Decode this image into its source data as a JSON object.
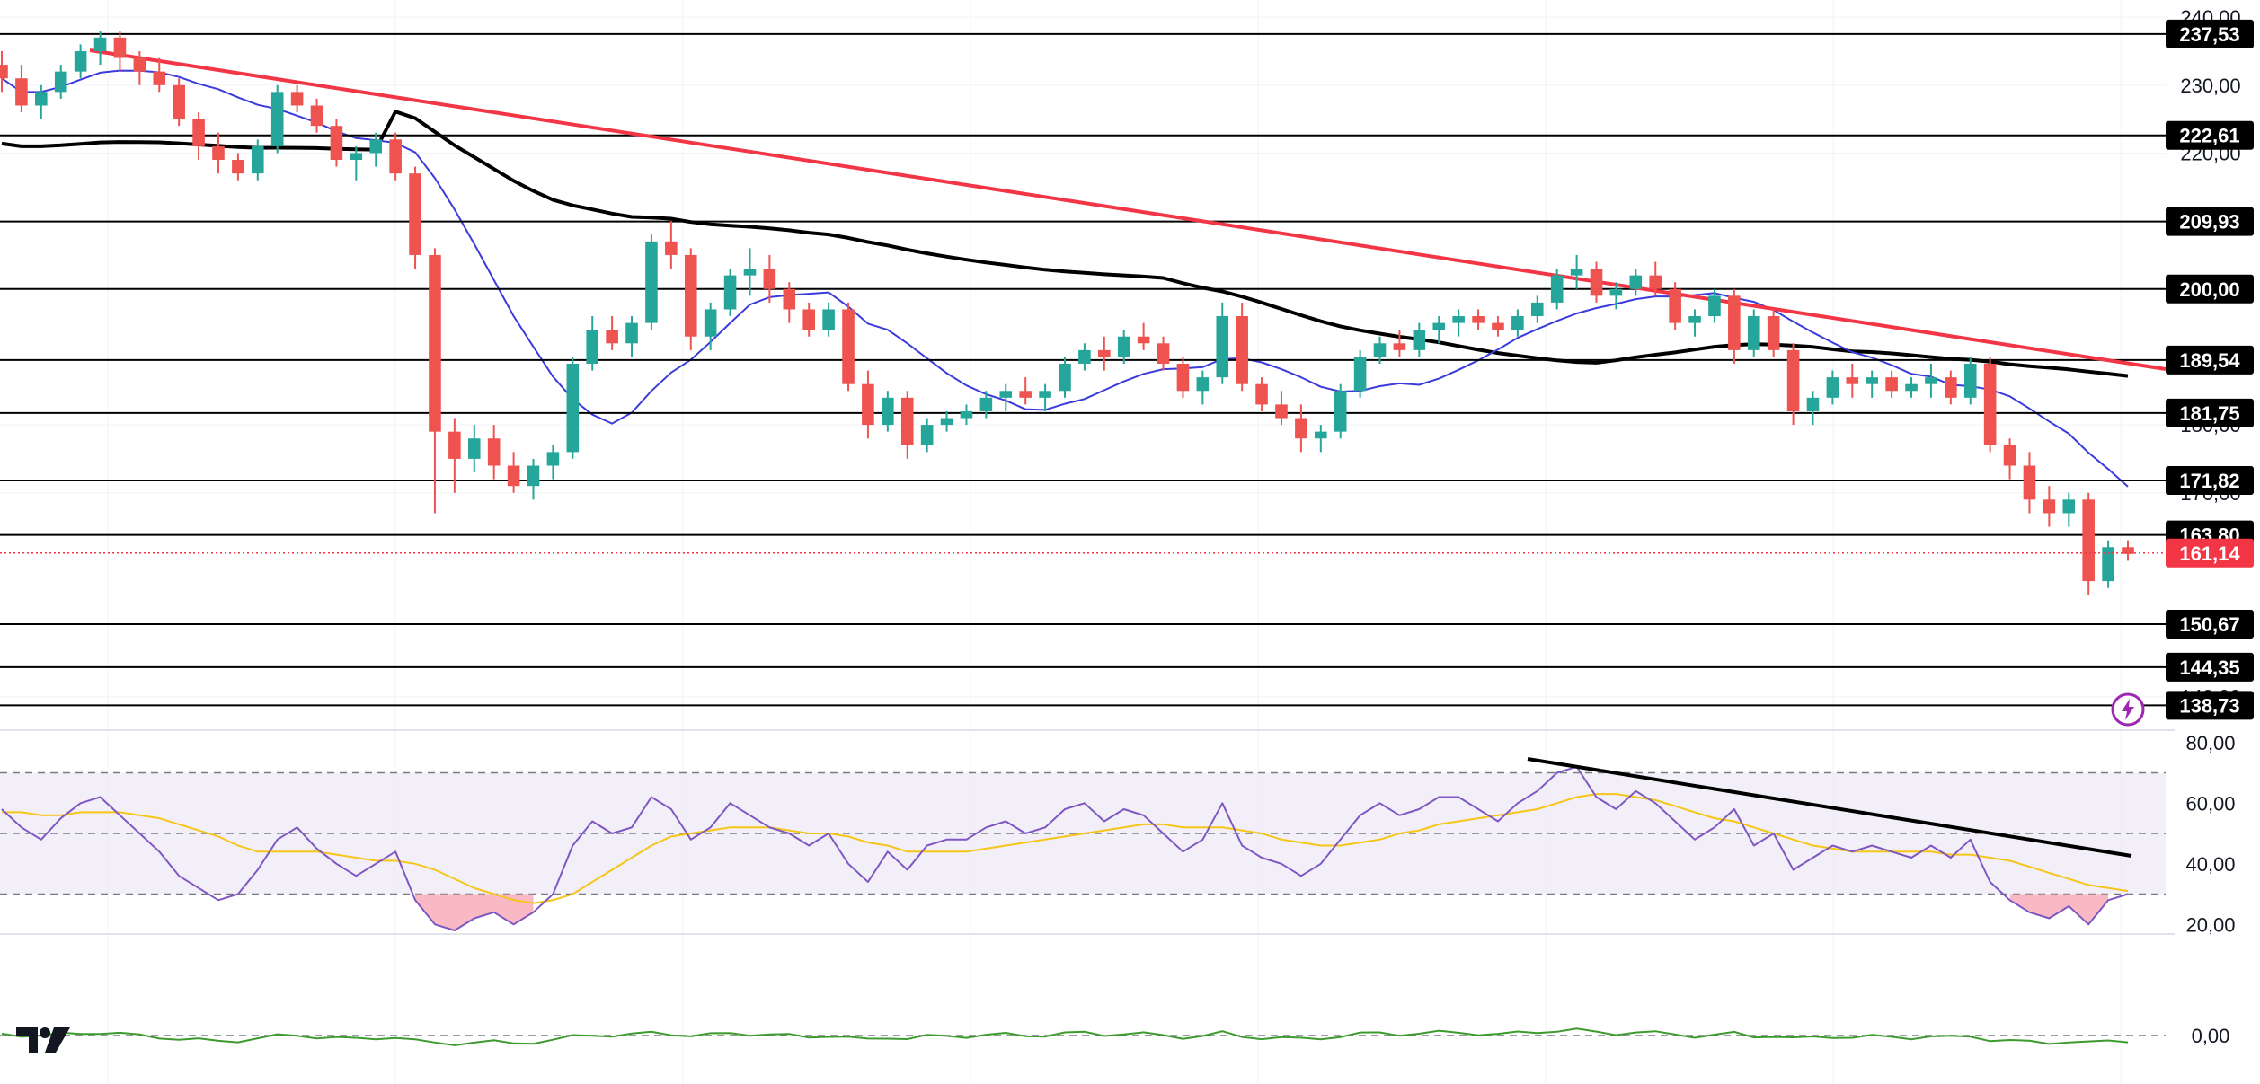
{
  "colors": {
    "up": "#26a69a",
    "down": "#ef5350",
    "sma_short": "#3b3bdc",
    "sma_long": "#000000",
    "trendline": "#f23645",
    "rsi": "#7e57c2",
    "rsi_ma": "#f5c518",
    "osc": "#3d9b2e",
    "current_price": "#f23645"
  },
  "chart_data": [
    {
      "type": "candlestick",
      "panel": "price",
      "y_scale": "linear",
      "ylim": [
        136,
        242
      ],
      "y_ticks": [
        "240,00",
        "230,00",
        "220,00",
        "180,00",
        "170,00",
        "140,00"
      ],
      "levels": [
        "237,53",
        "222,61",
        "209,93",
        "200,00",
        "189,54",
        "181,75",
        "171,82",
        "163,80",
        "150,67",
        "144,35",
        "138,73"
      ],
      "current_price": {
        "label": "161,14",
        "value": 161.14
      },
      "ohlc": [
        [
          233,
          235,
          229,
          231
        ],
        [
          231,
          233,
          226,
          227
        ],
        [
          227,
          230,
          225,
          229
        ],
        [
          229,
          233,
          228,
          232
        ],
        [
          232,
          236,
          231,
          235
        ],
        [
          235,
          238,
          233,
          237
        ],
        [
          237,
          238,
          232,
          234
        ],
        [
          234,
          235,
          230,
          232
        ],
        [
          232,
          234,
          229,
          230
        ],
        [
          230,
          231,
          224,
          225
        ],
        [
          225,
          226,
          219,
          221
        ],
        [
          221,
          223,
          217,
          219
        ],
        [
          219,
          220,
          216,
          217
        ],
        [
          217,
          222,
          216,
          221
        ],
        [
          221,
          230,
          220,
          229
        ],
        [
          229,
          230,
          226,
          227
        ],
        [
          227,
          228,
          223,
          224
        ],
        [
          224,
          225,
          218,
          219
        ],
        [
          219,
          221,
          216,
          220
        ],
        [
          220,
          223,
          218,
          222
        ],
        [
          222,
          223,
          216,
          217
        ],
        [
          217,
          218,
          203,
          205
        ],
        [
          205,
          206,
          167,
          179
        ],
        [
          179,
          181,
          170,
          175
        ],
        [
          175,
          180,
          173,
          178
        ],
        [
          178,
          180,
          172,
          174
        ],
        [
          174,
          176,
          170,
          171
        ],
        [
          171,
          175,
          169,
          174
        ],
        [
          174,
          177,
          172,
          176
        ],
        [
          176,
          190,
          175,
          189
        ],
        [
          189,
          196,
          188,
          194
        ],
        [
          194,
          196,
          191,
          192
        ],
        [
          192,
          196,
          190,
          195
        ],
        [
          195,
          208,
          194,
          207
        ],
        [
          207,
          210,
          203,
          205
        ],
        [
          205,
          206,
          191,
          193
        ],
        [
          193,
          198,
          191,
          197
        ],
        [
          197,
          203,
          196,
          202
        ],
        [
          202,
          206,
          199,
          203
        ],
        [
          203,
          205,
          198,
          200
        ],
        [
          200,
          201,
          195,
          197
        ],
        [
          197,
          198,
          193,
          194
        ],
        [
          194,
          198,
          193,
          197
        ],
        [
          197,
          198,
          185,
          186
        ],
        [
          186,
          188,
          178,
          180
        ],
        [
          180,
          185,
          179,
          184
        ],
        [
          184,
          185,
          175,
          177
        ],
        [
          177,
          181,
          176,
          180
        ],
        [
          180,
          182,
          179,
          181
        ],
        [
          181,
          183,
          180,
          182
        ],
        [
          182,
          185,
          181,
          184
        ],
        [
          184,
          186,
          182,
          185
        ],
        [
          185,
          187,
          183,
          184
        ],
        [
          184,
          186,
          182,
          185
        ],
        [
          185,
          190,
          184,
          189
        ],
        [
          189,
          192,
          188,
          191
        ],
        [
          191,
          193,
          188,
          190
        ],
        [
          190,
          194,
          189,
          193
        ],
        [
          193,
          195,
          191,
          192
        ],
        [
          192,
          193,
          188,
          189
        ],
        [
          189,
          190,
          184,
          185
        ],
        [
          185,
          188,
          183,
          187
        ],
        [
          187,
          198,
          186,
          196
        ],
        [
          196,
          198,
          185,
          186
        ],
        [
          186,
          187,
          182,
          183
        ],
        [
          183,
          185,
          180,
          181
        ],
        [
          181,
          183,
          176,
          178
        ],
        [
          178,
          180,
          176,
          179
        ],
        [
          179,
          186,
          178,
          185
        ],
        [
          185,
          191,
          184,
          190
        ],
        [
          190,
          193,
          189,
          192
        ],
        [
          192,
          194,
          190,
          191
        ],
        [
          191,
          195,
          190,
          194
        ],
        [
          194,
          196,
          192,
          195
        ],
        [
          195,
          197,
          193,
          196
        ],
        [
          196,
          197,
          194,
          195
        ],
        [
          195,
          196,
          193,
          194
        ],
        [
          194,
          197,
          193,
          196
        ],
        [
          196,
          199,
          195,
          198
        ],
        [
          198,
          203,
          197,
          202
        ],
        [
          202,
          205,
          200,
          203
        ],
        [
          203,
          204,
          198,
          199
        ],
        [
          199,
          201,
          197,
          200
        ],
        [
          200,
          203,
          199,
          202
        ],
        [
          202,
          204,
          199,
          200
        ],
        [
          200,
          201,
          194,
          195
        ],
        [
          195,
          197,
          193,
          196
        ],
        [
          196,
          200,
          195,
          199
        ],
        [
          199,
          200,
          189,
          191
        ],
        [
          191,
          197,
          190,
          196
        ],
        [
          196,
          197,
          190,
          191
        ],
        [
          191,
          192,
          180,
          182
        ],
        [
          182,
          185,
          180,
          184
        ],
        [
          184,
          188,
          183,
          187
        ],
        [
          187,
          189,
          184,
          186
        ],
        [
          186,
          188,
          184,
          187
        ],
        [
          187,
          188,
          184,
          185
        ],
        [
          185,
          187,
          184,
          186
        ],
        [
          186,
          189,
          184,
          187
        ],
        [
          187,
          188,
          183,
          184
        ],
        [
          184,
          190,
          183,
          189
        ],
        [
          189,
          190,
          176,
          177
        ],
        [
          177,
          178,
          172,
          174
        ],
        [
          174,
          176,
          167,
          169
        ],
        [
          169,
          171,
          165,
          167
        ],
        [
          167,
          170,
          165,
          169
        ],
        [
          169,
          170,
          155,
          157
        ],
        [
          157,
          163,
          156,
          162
        ],
        [
          162,
          163,
          160,
          161
        ]
      ]
    },
    {
      "type": "line",
      "panel": "rsi",
      "ylim": [
        18,
        82
      ],
      "y_ticks": [
        "80,00",
        "60,00",
        "40,00",
        "20,00"
      ],
      "band": [
        30,
        70
      ],
      "midline": 50,
      "values": [
        58,
        52,
        48,
        55,
        60,
        62,
        56,
        50,
        44,
        36,
        32,
        28,
        30,
        38,
        48,
        52,
        45,
        40,
        36,
        40,
        44,
        28,
        20,
        18,
        22,
        24,
        20,
        24,
        30,
        46,
        54,
        50,
        52,
        62,
        58,
        48,
        52,
        60,
        56,
        52,
        50,
        46,
        50,
        40,
        34,
        44,
        38,
        46,
        48,
        48,
        52,
        54,
        50,
        52,
        58,
        60,
        54,
        58,
        56,
        50,
        44,
        48,
        60,
        46,
        42,
        40,
        36,
        40,
        48,
        56,
        60,
        56,
        58,
        62,
        62,
        58,
        54,
        60,
        64,
        70,
        72,
        62,
        58,
        64,
        60,
        54,
        48,
        52,
        58,
        46,
        50,
        38,
        42,
        46,
        44,
        46,
        44,
        42,
        46,
        42,
        48,
        34,
        28,
        24,
        22,
        26,
        20,
        28,
        30
      ],
      "ma_values": [
        57,
        57,
        56,
        56,
        57,
        57,
        57,
        56,
        55,
        53,
        51,
        49,
        46,
        44,
        44,
        44,
        44,
        43,
        42,
        41,
        41,
        40,
        38,
        35,
        32,
        30,
        28,
        27,
        28,
        30,
        34,
        38,
        42,
        46,
        49,
        50,
        51,
        52,
        52,
        52,
        51,
        50,
        50,
        49,
        47,
        46,
        44,
        44,
        44,
        44,
        45,
        46,
        47,
        48,
        49,
        50,
        51,
        52,
        53,
        53,
        52,
        52,
        52,
        51,
        50,
        48,
        47,
        46,
        46,
        47,
        48,
        50,
        51,
        53,
        54,
        55,
        56,
        57,
        58,
        60,
        62,
        63,
        63,
        62,
        61,
        59,
        57,
        55,
        54,
        52,
        50,
        48,
        46,
        45,
        44,
        44,
        44,
        44,
        44,
        43,
        43,
        42,
        41,
        39,
        37,
        35,
        33,
        32,
        31
      ]
    },
    {
      "type": "line",
      "panel": "oscillator",
      "y_ticks": [
        "0,00"
      ],
      "zero_line": 0
    }
  ]
}
